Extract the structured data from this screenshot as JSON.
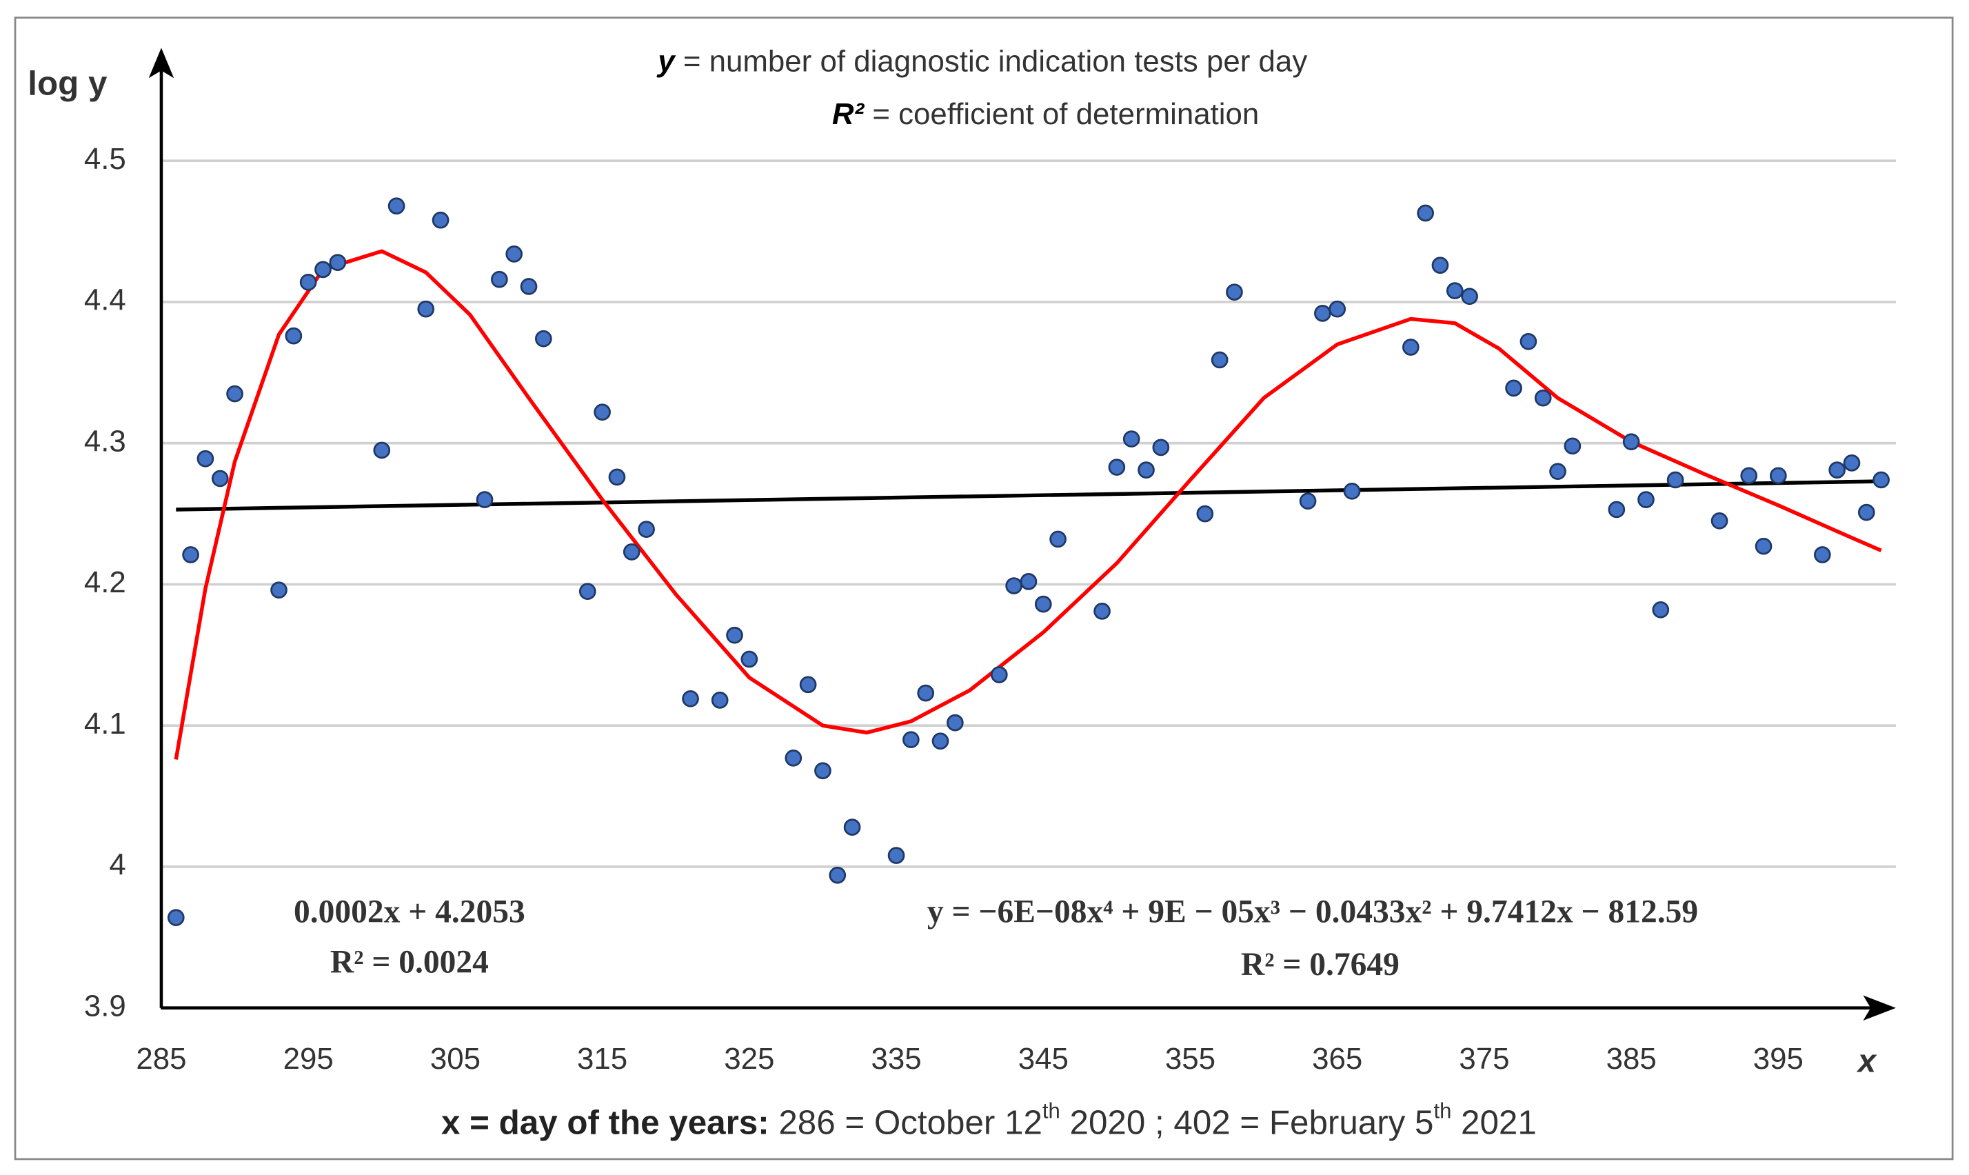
{
  "chart_data": {
    "type": "scatter",
    "y_axis_label": "log y",
    "x_axis_label": "x",
    "header": [
      {
        "var": "y",
        "text": " = number of diagnostic indication tests per day"
      },
      {
        "var": "R²",
        "text": " = coefficient of determination"
      }
    ],
    "footer": [
      "x = day of the years:",
      "  286 = October 12",
      "th",
      " 2020 ; 402 = February 5",
      "th",
      " 2021"
    ],
    "annotations": [
      {
        "text": "0.0002x + 4.2053",
        "color": "#000000"
      },
      {
        "text": "R² = 0.0024",
        "color": "#000000"
      },
      {
        "text": "y = −6E−08x⁴ + 9E − 05x³ − 0.0433x² + 9.7412x − 812.59",
        "color": "#ff0000"
      },
      {
        "text": "R² = 0.7649",
        "color": "#ff0000"
      }
    ],
    "xlim": [
      285,
      403
    ],
    "ylim": [
      3.9,
      4.58
    ],
    "xticks": [
      285,
      295,
      305,
      315,
      325,
      335,
      345,
      355,
      365,
      375,
      385,
      395
    ],
    "yticks": [
      3.9,
      4,
      4.1,
      4.2,
      4.3,
      4.4,
      4.5
    ],
    "grid": true,
    "series": [
      {
        "mode": "markers",
        "color": "#4472c4",
        "x": [
          286,
          287,
          288,
          289,
          290,
          293,
          294,
          295,
          296,
          297,
          300,
          301,
          303,
          304,
          307,
          308,
          309,
          310,
          311,
          314,
          315,
          316,
          317,
          318,
          321,
          323,
          324,
          325,
          328,
          329,
          330,
          331,
          332,
          335,
          336,
          337,
          338,
          339,
          342,
          343,
          344,
          345,
          346,
          349,
          350,
          351,
          352,
          353,
          356,
          357,
          358,
          363,
          364,
          365,
          366,
          370,
          371,
          372,
          373,
          374,
          377,
          378,
          379,
          380,
          381,
          384,
          385,
          386,
          387,
          388,
          391,
          393,
          394,
          395,
          398,
          399,
          400,
          401,
          402
        ],
        "values": [
          3.964,
          4.221,
          4.289,
          4.275,
          4.335,
          4.196,
          4.376,
          4.414,
          4.423,
          4.428,
          4.295,
          4.468,
          4.395,
          4.458,
          4.26,
          4.416,
          4.434,
          4.411,
          4.374,
          4.195,
          4.322,
          4.276,
          4.223,
          4.239,
          4.119,
          4.118,
          4.164,
          4.147,
          4.077,
          4.129,
          4.068,
          3.994,
          4.028,
          4.008,
          4.09,
          4.123,
          4.089,
          4.102,
          4.136,
          4.199,
          4.202,
          4.186,
          4.232,
          4.181,
          4.283,
          4.303,
          4.281,
          4.297,
          4.25,
          4.359,
          4.407,
          4.259,
          4.392,
          4.395,
          4.266,
          4.368,
          4.463,
          4.426,
          4.408,
          4.404,
          4.339,
          4.372,
          4.332,
          4.28,
          4.298,
          4.253,
          4.301,
          4.26,
          4.182,
          4.274,
          4.245,
          4.277,
          4.227,
          4.277,
          4.221,
          4.281,
          4.286,
          4.251,
          4.274
        ]
      },
      {
        "mode": "lines",
        "color": "#000000",
        "x": [
          286,
          402
        ],
        "values": [
          4.253,
          4.273
        ]
      },
      {
        "mode": "lines",
        "color": "#ff0000",
        "x": [
          286,
          288,
          290,
          293,
          296,
          300,
          303,
          306,
          310,
          315,
          320,
          325,
          330,
          333,
          336,
          340,
          345,
          350,
          355,
          360,
          365,
          370,
          373,
          376,
          380,
          385,
          390,
          395,
          400,
          402
        ],
        "values": [
          4.076,
          4.197,
          4.287,
          4.377,
          4.423,
          4.436,
          4.421,
          4.391,
          4.332,
          4.26,
          4.193,
          4.134,
          4.1,
          4.095,
          4.103,
          4.125,
          4.166,
          4.215,
          4.274,
          4.332,
          4.37,
          4.388,
          4.385,
          4.367,
          4.332,
          4.301,
          4.278,
          4.256,
          4.233,
          4.224
        ]
      }
    ]
  }
}
